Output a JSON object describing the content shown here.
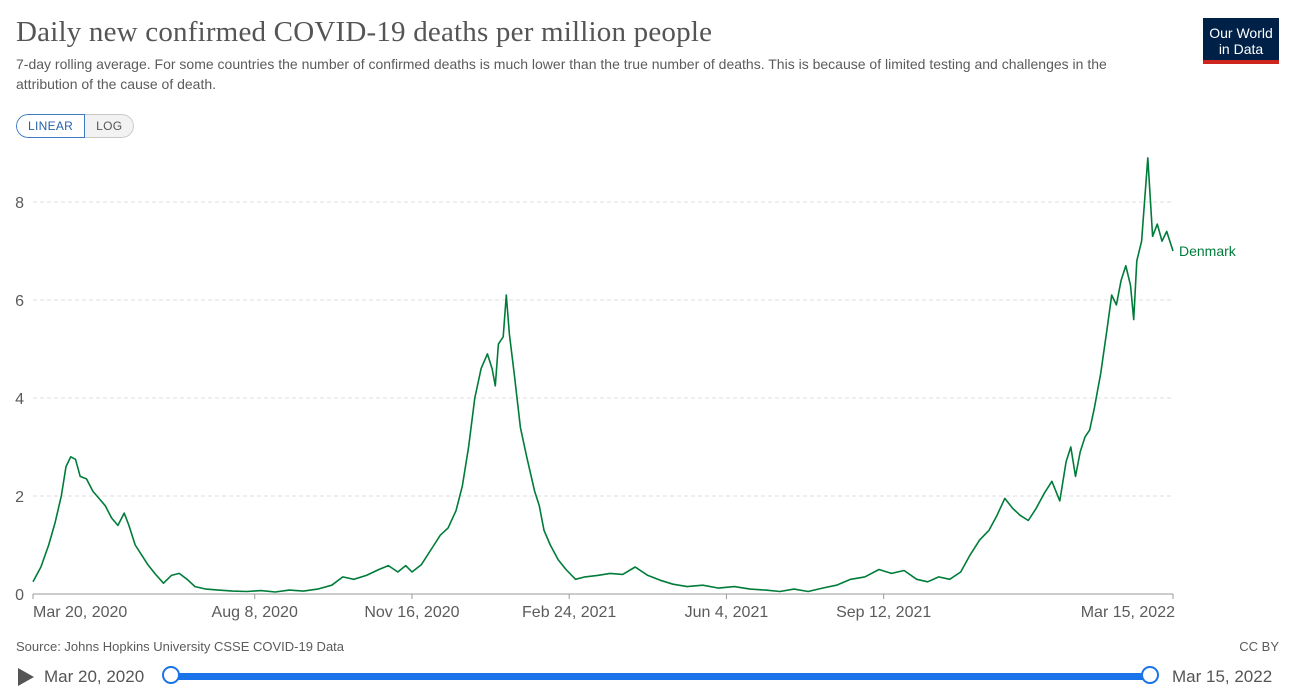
{
  "header": {
    "title": "Daily new confirmed COVID-19 deaths per million people",
    "subtitle": "7-day rolling average. For some countries the number of confirmed deaths is much lower than the true number of deaths. This is because of limited testing and challenges in the attribution of the cause of death.",
    "logo_line1": "Our World",
    "logo_line2": "in Data"
  },
  "controls": {
    "linear_label": "LINEAR",
    "log_label": "LOG",
    "active_scale": "linear"
  },
  "footer": {
    "source": "Source: Johns Hopkins University CSSE COVID-19 Data",
    "license": "CC BY"
  },
  "timeline": {
    "start_label": "Mar 20, 2020",
    "end_label": "Mar 15, 2022"
  },
  "colors": {
    "series": "#007c3a",
    "grid": "#dddddd",
    "axis": "#999999",
    "text": "#5b5b5b"
  },
  "chart_data": {
    "type": "line",
    "title": "Daily new confirmed COVID-19 deaths per million people",
    "xlabel": "",
    "ylabel": "",
    "ylim": [
      0,
      9
    ],
    "yticks": [
      0,
      2,
      4,
      6,
      8
    ],
    "xlim": [
      "2020-03-20",
      "2022-03-15"
    ],
    "xticks": [
      {
        "date": "2020-03-20",
        "label": "Mar 20, 2020"
      },
      {
        "date": "2020-08-08",
        "label": "Aug 8, 2020"
      },
      {
        "date": "2020-11-16",
        "label": "Nov 16, 2020"
      },
      {
        "date": "2021-02-24",
        "label": "Feb 24, 2021"
      },
      {
        "date": "2021-06-04",
        "label": "Jun 4, 2021"
      },
      {
        "date": "2021-09-12",
        "label": "Sep 12, 2021"
      },
      {
        "date": "2022-03-15",
        "label": "Mar 15, 2022"
      }
    ],
    "grid": "horizontal dashed",
    "legend": "line end label",
    "series": [
      {
        "name": "Denmark",
        "points": [
          [
            "2020-03-20",
            0.25
          ],
          [
            "2020-03-25",
            0.55
          ],
          [
            "2020-03-30",
            1.0
          ],
          [
            "2020-04-03",
            1.45
          ],
          [
            "2020-04-07",
            2.0
          ],
          [
            "2020-04-10",
            2.6
          ],
          [
            "2020-04-13",
            2.8
          ],
          [
            "2020-04-16",
            2.75
          ],
          [
            "2020-04-19",
            2.4
          ],
          [
            "2020-04-23",
            2.35
          ],
          [
            "2020-04-27",
            2.1
          ],
          [
            "2020-05-01",
            1.95
          ],
          [
            "2020-05-05",
            1.8
          ],
          [
            "2020-05-09",
            1.55
          ],
          [
            "2020-05-13",
            1.4
          ],
          [
            "2020-05-17",
            1.65
          ],
          [
            "2020-05-20",
            1.4
          ],
          [
            "2020-05-24",
            1.0
          ],
          [
            "2020-05-28",
            0.8
          ],
          [
            "2020-06-01",
            0.6
          ],
          [
            "2020-06-06",
            0.4
          ],
          [
            "2020-06-11",
            0.22
          ],
          [
            "2020-06-16",
            0.38
          ],
          [
            "2020-06-21",
            0.42
          ],
          [
            "2020-06-26",
            0.3
          ],
          [
            "2020-07-01",
            0.15
          ],
          [
            "2020-07-08",
            0.1
          ],
          [
            "2020-07-16",
            0.08
          ],
          [
            "2020-07-25",
            0.06
          ],
          [
            "2020-08-03",
            0.05
          ],
          [
            "2020-08-12",
            0.07
          ],
          [
            "2020-08-21",
            0.04
          ],
          [
            "2020-08-30",
            0.08
          ],
          [
            "2020-09-08",
            0.06
          ],
          [
            "2020-09-17",
            0.1
          ],
          [
            "2020-09-26",
            0.18
          ],
          [
            "2020-10-03",
            0.35
          ],
          [
            "2020-10-10",
            0.3
          ],
          [
            "2020-10-18",
            0.38
          ],
          [
            "2020-10-26",
            0.5
          ],
          [
            "2020-11-01",
            0.58
          ],
          [
            "2020-11-07",
            0.45
          ],
          [
            "2020-11-12",
            0.58
          ],
          [
            "2020-11-16",
            0.45
          ],
          [
            "2020-11-22",
            0.6
          ],
          [
            "2020-11-29",
            0.95
          ],
          [
            "2020-12-04",
            1.2
          ],
          [
            "2020-12-09",
            1.35
          ],
          [
            "2020-12-14",
            1.7
          ],
          [
            "2020-12-18",
            2.2
          ],
          [
            "2020-12-22",
            3.0
          ],
          [
            "2020-12-26",
            4.0
          ],
          [
            "2020-12-30",
            4.6
          ],
          [
            "2021-01-03",
            4.9
          ],
          [
            "2021-01-06",
            4.6
          ],
          [
            "2021-01-08",
            4.25
          ],
          [
            "2021-01-10",
            5.1
          ],
          [
            "2021-01-13",
            5.25
          ],
          [
            "2021-01-15",
            6.1
          ],
          [
            "2021-01-17",
            5.3
          ],
          [
            "2021-01-20",
            4.5
          ],
          [
            "2021-01-24",
            3.4
          ],
          [
            "2021-01-28",
            2.8
          ],
          [
            "2021-02-02",
            2.1
          ],
          [
            "2021-02-05",
            1.8
          ],
          [
            "2021-02-08",
            1.3
          ],
          [
            "2021-02-12",
            1.0
          ],
          [
            "2021-02-17",
            0.7
          ],
          [
            "2021-02-22",
            0.5
          ],
          [
            "2021-02-28",
            0.3
          ],
          [
            "2021-03-06",
            0.35
          ],
          [
            "2021-03-14",
            0.38
          ],
          [
            "2021-03-22",
            0.42
          ],
          [
            "2021-03-30",
            0.4
          ],
          [
            "2021-04-07",
            0.55
          ],
          [
            "2021-04-15",
            0.38
          ],
          [
            "2021-04-23",
            0.28
          ],
          [
            "2021-05-01",
            0.2
          ],
          [
            "2021-05-10",
            0.15
          ],
          [
            "2021-05-20",
            0.18
          ],
          [
            "2021-05-30",
            0.12
          ],
          [
            "2021-06-09",
            0.15
          ],
          [
            "2021-06-19",
            0.1
          ],
          [
            "2021-06-29",
            0.08
          ],
          [
            "2021-07-08",
            0.05
          ],
          [
            "2021-07-17",
            0.1
          ],
          [
            "2021-07-26",
            0.05
          ],
          [
            "2021-08-04",
            0.12
          ],
          [
            "2021-08-13",
            0.18
          ],
          [
            "2021-08-22",
            0.3
          ],
          [
            "2021-08-31",
            0.35
          ],
          [
            "2021-09-09",
            0.5
          ],
          [
            "2021-09-17",
            0.42
          ],
          [
            "2021-09-25",
            0.48
          ],
          [
            "2021-10-03",
            0.3
          ],
          [
            "2021-10-10",
            0.25
          ],
          [
            "2021-10-17",
            0.35
          ],
          [
            "2021-10-24",
            0.3
          ],
          [
            "2021-10-31",
            0.45
          ],
          [
            "2021-11-06",
            0.8
          ],
          [
            "2021-11-12",
            1.1
          ],
          [
            "2021-11-18",
            1.3
          ],
          [
            "2021-11-23",
            1.6
          ],
          [
            "2021-11-28",
            1.95
          ],
          [
            "2021-12-03",
            1.75
          ],
          [
            "2021-12-08",
            1.6
          ],
          [
            "2021-12-13",
            1.5
          ],
          [
            "2021-12-18",
            1.75
          ],
          [
            "2021-12-23",
            2.05
          ],
          [
            "2021-12-28",
            2.3
          ],
          [
            "2022-01-02",
            1.9
          ],
          [
            "2022-01-06",
            2.7
          ],
          [
            "2022-01-09",
            3.0
          ],
          [
            "2022-01-12",
            2.4
          ],
          [
            "2022-01-15",
            2.9
          ],
          [
            "2022-01-18",
            3.2
          ],
          [
            "2022-01-21",
            3.35
          ],
          [
            "2022-01-24",
            3.8
          ],
          [
            "2022-01-28",
            4.5
          ],
          [
            "2022-02-01",
            5.4
          ],
          [
            "2022-02-04",
            6.1
          ],
          [
            "2022-02-07",
            5.9
          ],
          [
            "2022-02-10",
            6.4
          ],
          [
            "2022-02-13",
            6.7
          ],
          [
            "2022-02-16",
            6.3
          ],
          [
            "2022-02-18",
            5.6
          ],
          [
            "2022-02-20",
            6.8
          ],
          [
            "2022-02-23",
            7.2
          ],
          [
            "2022-02-27",
            8.9
          ],
          [
            "2022-03-02",
            7.3
          ],
          [
            "2022-03-05",
            7.55
          ],
          [
            "2022-03-08",
            7.2
          ],
          [
            "2022-03-11",
            7.4
          ],
          [
            "2022-03-15",
            7.0
          ]
        ]
      }
    ]
  }
}
